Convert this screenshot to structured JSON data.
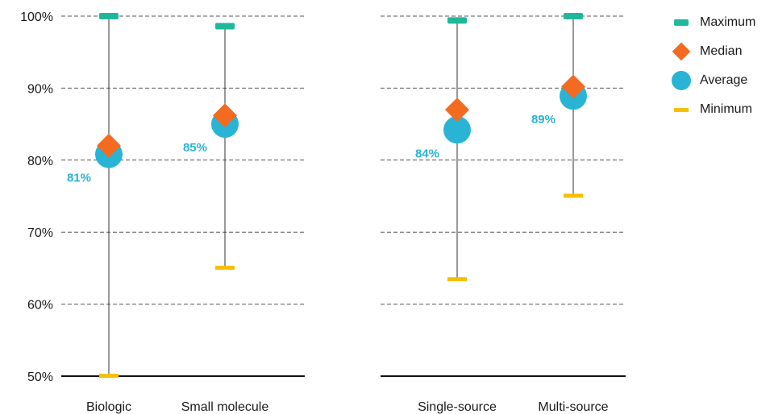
{
  "chart_data": {
    "type": "scatter",
    "ylim": [
      50,
      100
    ],
    "y_ticks": [
      "50%",
      "60%",
      "70%",
      "80%",
      "90%",
      "100%"
    ],
    "y_tick_values": [
      50,
      60,
      70,
      80,
      90,
      100
    ],
    "grid": "horizontal dashed",
    "legend_placement": "top-right",
    "legend": [
      {
        "key": "maximum",
        "label": "Maximum",
        "marker": "bar",
        "color": "#1fb89a"
      },
      {
        "key": "median",
        "label": "Median",
        "marker": "diamond",
        "color": "#f26b21"
      },
      {
        "key": "average",
        "label": "Average",
        "marker": "circle",
        "color": "#29b4d6"
      },
      {
        "key": "minimum",
        "label": "Minimum",
        "marker": "bar",
        "color": "#f5c000"
      }
    ],
    "panels": [
      {
        "categories": [
          {
            "label": "Biologic",
            "maximum": 100,
            "median": 82,
            "average": 80.8,
            "minimum": 50,
            "average_label": "81%"
          },
          {
            "label": "Small molecule",
            "maximum": 98.6,
            "median": 86.2,
            "average": 85,
            "minimum": 65,
            "average_label": "85%"
          }
        ]
      },
      {
        "categories": [
          {
            "label": "Single-source",
            "maximum": 99.4,
            "median": 87,
            "average": 84.2,
            "minimum": 63.4,
            "average_label": "84%"
          },
          {
            "label": "Multi-source",
            "maximum": 100,
            "median": 90.2,
            "average": 88.9,
            "minimum": 75,
            "average_label": "89%"
          }
        ]
      }
    ]
  }
}
